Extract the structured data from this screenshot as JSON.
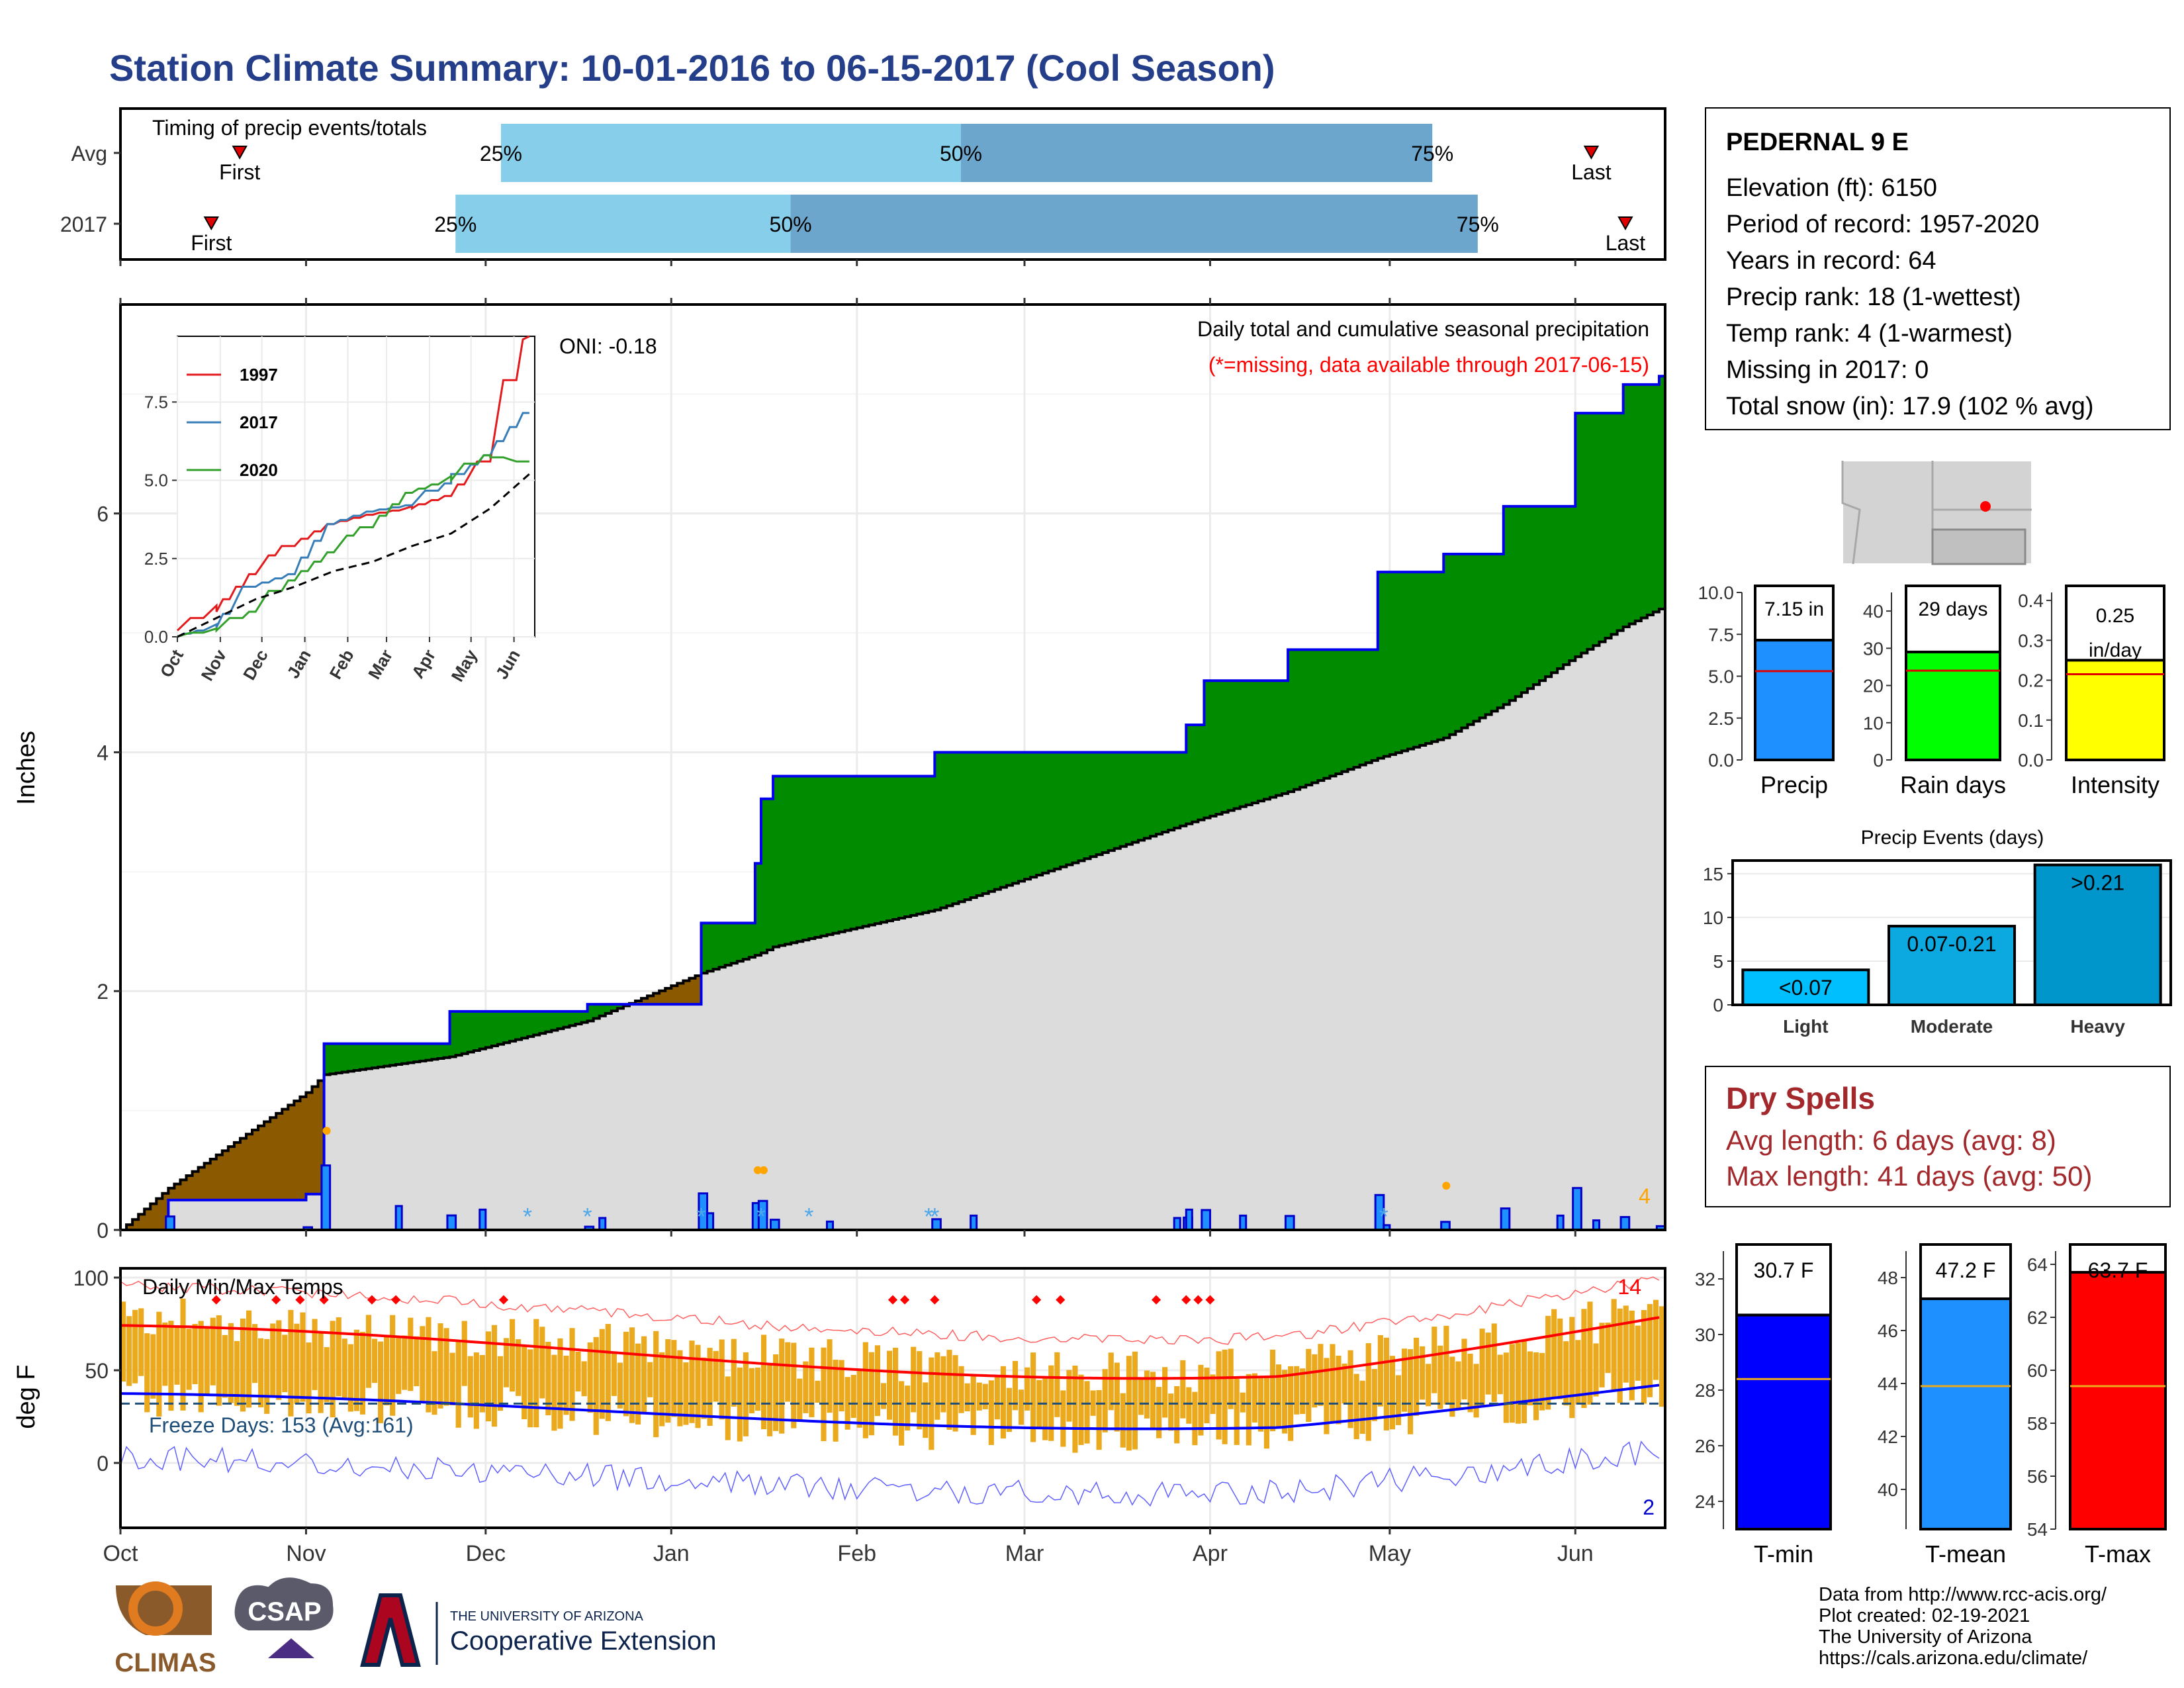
{
  "title": "Station Climate Summary: 10-01-2016 to 06-15-2017 (Cool Season)",
  "station": {
    "name": "PEDERNAL 9 E",
    "rows": [
      "Elevation (ft): 6150",
      "Period of record: 1957-2020",
      "Years in record: 64",
      "Precip rank: 18 (1-wettest)",
      "Temp rank: 4 (1-warmest)",
      "Missing in 2017: 0",
      "Total snow (in): 17.9 (102 % avg)"
    ]
  },
  "timing": {
    "label": "Timing of precip events/totals",
    "rows": [
      {
        "name": "Avg",
        "first": "First",
        "last": "Last",
        "p25": "25%",
        "p50": "50%",
        "p75": "75%"
      },
      {
        "name": "2017",
        "first": "First",
        "last": "Last",
        "p25": "25%",
        "p50": "50%",
        "p75": "75%"
      }
    ]
  },
  "precip_panel": {
    "ylabel": "Inches",
    "oni": "ONI: -0.18",
    "caption": "Daily total and cumulative seasonal precipitation",
    "missing_note": "(*=missing, data available through 2017-06-15)",
    "corner_count": "4",
    "months": [
      "Oct",
      "Nov",
      "Dec",
      "Jan",
      "Feb",
      "Mar",
      "Apr",
      "May",
      "Jun"
    ],
    "yticks": [
      "0",
      "2",
      "4",
      "6"
    ]
  },
  "inset": {
    "legend": [
      "1997",
      "2017",
      "2020"
    ],
    "colors": [
      "#E31A1C",
      "#377EB8",
      "#33A02C"
    ],
    "yticks": [
      "0.0",
      "2.5",
      "5.0",
      "7.5"
    ],
    "months": [
      "Oct",
      "Nov",
      "Dec",
      "Jan",
      "Feb",
      "Mar",
      "Apr",
      "May",
      "Jun"
    ]
  },
  "temp_panel": {
    "ylabel": "deg F",
    "label": "Daily Min/Max Temps",
    "freeze": "Freeze Days: 153 (Avg:161)",
    "hot_count": "14",
    "cold_count": "2",
    "yticks": [
      "0",
      "50",
      "100"
    ]
  },
  "summary_bars": {
    "precip": {
      "label": "Precip",
      "value": 7.15,
      "avg": 5.3,
      "text": "7.15 in",
      "ylim": [
        0,
        10
      ],
      "yticks": [
        "0.0",
        "2.5",
        "5.0",
        "7.5",
        "10.0"
      ],
      "color": "#1E90FF"
    },
    "raindays": {
      "label": "Rain days",
      "value": 29,
      "avg": 24,
      "text": "29 days",
      "ylim": [
        0,
        45
      ],
      "yticks": [
        "0",
        "10",
        "20",
        "30",
        "40"
      ],
      "color": "#00FF00"
    },
    "intensity": {
      "label": "Intensity",
      "value": 0.25,
      "avg": 0.215,
      "text1": "0.25",
      "text2": "in/day",
      "ylim": [
        0,
        0.42
      ],
      "yticks": [
        "0.0",
        "0.1",
        "0.2",
        "0.3",
        "0.4"
      ],
      "color": "#FFFF00"
    }
  },
  "events": {
    "title": "Precip Events (days)",
    "categories": [
      "Light",
      "Moderate",
      "Heavy"
    ],
    "values": [
      4,
      9,
      16
    ],
    "labels": [
      "<0.07",
      "0.07-0.21",
      ">0.21"
    ],
    "yticks": [
      "0",
      "5",
      "10",
      "15"
    ],
    "colors": [
      "#00BFFF",
      "#0CA8E0",
      "#0096CC"
    ]
  },
  "dry_spells": {
    "title": "Dry Spells",
    "avg": "Avg length: 6 days (avg: 8)",
    "max": "Max length: 41 days (avg: 50)"
  },
  "temp_bars": {
    "tmin": {
      "label": "T-min",
      "value": 30.7,
      "avg": 28.4,
      "text": "30.7 F",
      "ylim": [
        23,
        33
      ],
      "yticks": [
        "24",
        "26",
        "28",
        "30",
        "32"
      ],
      "color": "#0000FF"
    },
    "tmean": {
      "label": "T-mean",
      "value": 47.2,
      "avg": 43.9,
      "text": "47.2 F",
      "ylim": [
        38.5,
        49
      ],
      "yticks": [
        "40",
        "42",
        "44",
        "46",
        "48"
      ],
      "color": "#1E90FF"
    },
    "tmax": {
      "label": "T-max",
      "value": 63.7,
      "avg": 59.4,
      "text": "63.7 F",
      "ylim": [
        54,
        64.5
      ],
      "yticks": [
        "54",
        "56",
        "58",
        "60",
        "62",
        "64"
      ],
      "color": "#FF0000"
    }
  },
  "credits": [
    "Data from http://www.rcc-acis.org/",
    "Plot created: 02-19-2021",
    "The University of Arizona",
    "https://cals.arizona.edu/climate/"
  ],
  "logos": {
    "climas": "CLIMAS",
    "csap": "CSAP",
    "ua_small": "THE UNIVERSITY OF ARIZONA",
    "ua_big": "Cooperative Extension"
  },
  "chart_data": [
    {
      "type": "area",
      "title": "Daily total and cumulative seasonal precipitation",
      "ylabel": "Inches",
      "x": [
        "2016-10-01",
        "2016-10-09",
        "2016-11-01",
        "2016-11-04",
        "2016-11-25",
        "2016-12-18",
        "2017-01-06",
        "2017-01-15",
        "2017-01-16",
        "2017-01-18",
        "2017-02-14",
        "2017-03-28",
        "2017-03-31",
        "2017-04-14",
        "2017-04-29",
        "2017-05-10",
        "2017-05-20",
        "2017-06-01",
        "2017-06-09",
        "2017-06-15"
      ],
      "series": [
        {
          "name": "2017",
          "values": [
            0.0,
            0.25,
            0.3,
            1.56,
            1.83,
            1.89,
            2.57,
            3.07,
            3.61,
            3.8,
            4.0,
            4.23,
            4.6,
            4.86,
            5.51,
            5.66,
            6.06,
            6.84,
            7.08,
            7.15
          ]
        },
        {
          "values": [
            0.0,
            0.35,
            1.15,
            1.3,
            1.45,
            1.75,
            2.15,
            2.3,
            2.32,
            2.37,
            2.68,
            3.4,
            3.45,
            3.67,
            3.95,
            4.12,
            4.4,
            4.8,
            5.05,
            5.2
          ]
        }
      ],
      "ylim": [
        0,
        7.75
      ]
    },
    {
      "type": "line",
      "x": [
        "Oct",
        "Nov",
        "Dec",
        "Jan",
        "Feb",
        "Mar",
        "Apr",
        "May",
        "Jun",
        "Jun15"
      ],
      "series": [
        {
          "name": "1997",
          "values": [
            0.2,
            0.8,
            2.0,
            2.9,
            3.6,
            3.9,
            4.1,
            4.5,
            5.6,
            9.5
          ]
        },
        {
          "name": "2017",
          "values": [
            0.0,
            0.3,
            1.6,
            2.0,
            3.6,
            4.0,
            4.2,
            4.9,
            5.8,
            7.15
          ]
        },
        {
          "name": "2020",
          "values": [
            0.0,
            0.2,
            0.8,
            1.8,
            2.7,
            3.5,
            4.6,
            5.0,
            5.8,
            5.6
          ]
        },
        {
          "values": [
            0.0,
            0.6,
            1.2,
            1.6,
            2.1,
            2.4,
            2.9,
            3.3,
            4.1,
            5.2
          ]
        }
      ],
      "legend": "top-left"
    },
    {
      "type": "bar",
      "title": "Precip Events (days)",
      "categories": [
        "Light",
        "Moderate",
        "Heavy"
      ],
      "values": [
        4,
        9,
        16
      ]
    }
  ]
}
